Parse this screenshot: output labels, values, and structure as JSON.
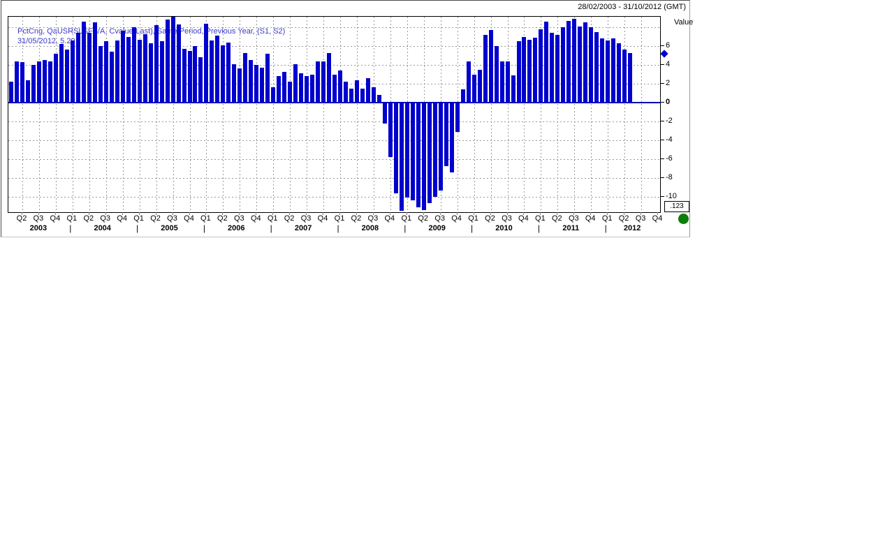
{
  "header": {
    "date_range": "28/02/2003 - 31/10/2012 (GMT)"
  },
  "legend": {
    "line1": "PctCng, QaUSRSLSFS/A, Cvalue(Last), Same Period, Previous Year, (S1, S2)",
    "line2": "31/05/2012, 5.29"
  },
  "y_axis": {
    "title": "Value",
    "decimal_button": ".123"
  },
  "colors": {
    "bar": "#0101cd",
    "legend_text": "#3a3ac8",
    "zero_line": "#0000b2",
    "grid": "#999999",
    "status_dot": "#0a7d0a"
  },
  "chart_data": {
    "type": "bar",
    "title": "PctCng, QaUSRSLSFS/A, Cvalue(Last), Same Period, Previous Year, (S1, S2)",
    "subtitle": "31/05/2012, 5.29",
    "xlabel": "",
    "ylabel": "Value",
    "date_range": "28/02/2003 - 31/10/2012 (GMT)",
    "frequency": "monthly",
    "grid": true,
    "legend_position": "top-left-overlay",
    "ylim": [
      -11.6,
      9.1
    ],
    "yticks": [
      6,
      4,
      2,
      0,
      -2,
      -4,
      -6,
      -8,
      -10
    ],
    "grid_values": [
      8,
      6,
      4,
      2,
      -2,
      -4,
      -6,
      -8,
      -10
    ],
    "last_point": {
      "date": "31/05/2012",
      "value": 5.29
    },
    "x": [
      "Feb 2003",
      "Mar 2003",
      "Apr 2003",
      "May 2003",
      "Jun 2003",
      "Jul 2003",
      "Aug 2003",
      "Sep 2003",
      "Oct 2003",
      "Nov 2003",
      "Dec 2003",
      "Jan 2004",
      "Feb 2004",
      "Mar 2004",
      "Apr 2004",
      "May 2004",
      "Jun 2004",
      "Jul 2004",
      "Aug 2004",
      "Sep 2004",
      "Oct 2004",
      "Nov 2004",
      "Dec 2004",
      "Jan 2005",
      "Feb 2005",
      "Mar 2005",
      "Apr 2005",
      "May 2005",
      "Jun 2005",
      "Jul 2005",
      "Aug 2005",
      "Sep 2005",
      "Oct 2005",
      "Nov 2005",
      "Dec 2005",
      "Jan 2006",
      "Feb 2006",
      "Mar 2006",
      "Apr 2006",
      "May 2006",
      "Jun 2006",
      "Jul 2006",
      "Aug 2006",
      "Sep 2006",
      "Oct 2006",
      "Nov 2006",
      "Dec 2006",
      "Jan 2007",
      "Feb 2007",
      "Mar 2007",
      "Apr 2007",
      "May 2007",
      "Jun 2007",
      "Jul 2007",
      "Aug 2007",
      "Sep 2007",
      "Oct 2007",
      "Nov 2007",
      "Dec 2007",
      "Jan 2008",
      "Feb 2008",
      "Mar 2008",
      "Apr 2008",
      "May 2008",
      "Jun 2008",
      "Jul 2008",
      "Aug 2008",
      "Sep 2008",
      "Oct 2008",
      "Nov 2008",
      "Dec 2008",
      "Jan 2009",
      "Feb 2009",
      "Mar 2009",
      "Apr 2009",
      "May 2009",
      "Jun 2009",
      "Jul 2009",
      "Aug 2009",
      "Sep 2009",
      "Oct 2009",
      "Nov 2009",
      "Dec 2009",
      "Jan 2010",
      "Feb 2010",
      "Mar 2010",
      "Apr 2010",
      "May 2010",
      "Jun 2010",
      "Jul 2010",
      "Aug 2010",
      "Sep 2010",
      "Oct 2010",
      "Nov 2010",
      "Dec 2010",
      "Jan 2011",
      "Feb 2011",
      "Mar 2011",
      "Apr 2011",
      "May 2011",
      "Jun 2011",
      "Jul 2011",
      "Aug 2011",
      "Sep 2011",
      "Oct 2011",
      "Nov 2011",
      "Dec 2011",
      "Jan 2012",
      "Feb 2012",
      "Mar 2012",
      "Apr 2012",
      "May 2012"
    ],
    "values": [
      2.2,
      4.4,
      4.3,
      2.4,
      4.0,
      4.4,
      4.5,
      4.4,
      5.2,
      6.2,
      5.6,
      6.6,
      7.4,
      8.6,
      7.4,
      8.5,
      6.0,
      6.5,
      5.4,
      6.6,
      7.6,
      7.0,
      8.0,
      6.7,
      7.3,
      6.3,
      8.2,
      6.5,
      8.8,
      9.1,
      8.3,
      5.7,
      5.5,
      6.0,
      4.8,
      8.4,
      6.6,
      7.1,
      6.1,
      6.4,
      4.1,
      3.6,
      5.3,
      4.5,
      4.0,
      3.7,
      5.2,
      1.6,
      2.8,
      3.3,
      2.2,
      4.1,
      3.1,
      2.8,
      3.0,
      4.4,
      4.4,
      5.3,
      3.0,
      3.4,
      2.2,
      1.5,
      2.4,
      1.5,
      2.6,
      1.6,
      0.8,
      -2.2,
      -5.8,
      -9.6,
      -11.5,
      -10.1,
      -10.4,
      -11.1,
      -11.4,
      -10.7,
      -10.0,
      -9.3,
      -6.7,
      -7.4,
      -3.1,
      1.4,
      4.4,
      3.0,
      3.5,
      7.2,
      7.7,
      6.0,
      4.4,
      4.4,
      2.9,
      6.5,
      7.0,
      6.7,
      6.9,
      7.8,
      8.6,
      7.4,
      7.2,
      8.0,
      8.7,
      8.9,
      8.1,
      8.5,
      8.0,
      7.5,
      6.8,
      6.6,
      6.8,
      6.3,
      5.6,
      5.29
    ],
    "x_quarter_labels": [
      "Q2",
      "Q3",
      "Q4",
      "Q1",
      "Q2",
      "Q3",
      "Q4",
      "Q1",
      "Q2",
      "Q3",
      "Q4",
      "Q1",
      "Q2",
      "Q3",
      "Q4",
      "Q1",
      "Q2",
      "Q3",
      "Q4",
      "Q1",
      "Q2",
      "Q3",
      "Q4",
      "Q1",
      "Q2",
      "Q3",
      "Q4",
      "Q1",
      "Q2",
      "Q3",
      "Q4",
      "Q1",
      "Q2",
      "Q3",
      "Q4",
      "Q1",
      "Q2",
      "Q3",
      "Q4"
    ],
    "x_year_labels": [
      "2003",
      "2004",
      "2005",
      "2006",
      "2007",
      "2008",
      "2009",
      "2010",
      "2011",
      "2012"
    ],
    "year_separator": "|"
  }
}
